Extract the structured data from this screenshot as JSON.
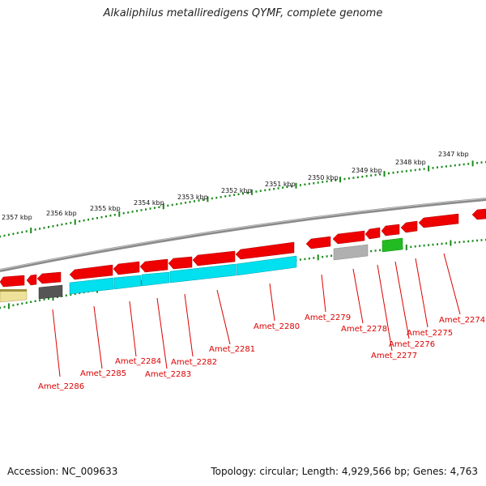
{
  "title": "Alkaliphilus metalliredigens QYMF, complete genome",
  "accession_text": "Accession: NC_009633",
  "topology_text": "Topology: circular; Length: 4,929,566 bp; Genes: 4,763",
  "colors": {
    "backbone": "#8a8a8a",
    "forward_gene": "#ee0000",
    "reverse_cds": "#00e0ee",
    "tick": "#1a8a1a",
    "label": "#dd0000",
    "gray_gene": "#b0b0b0",
    "dark_gene": "#555555",
    "green_gene": "#22bb22",
    "yellow_gene": "#eee29a"
  },
  "kbp_labels": [
    "2357 kbp",
    "2356 kbp",
    "2355 kbp",
    "2354 kbp",
    "2353 kbp",
    "2352 kbp",
    "2351 kbp",
    "2350 kbp",
    "2349 kbp",
    "2348 kbp",
    "2347 kbp"
  ],
  "gene_labels": [
    "Amet_2286",
    "Amet_2285",
    "Amet_2284",
    "Amet_2283",
    "Amet_2282",
    "Amet_2281",
    "Amet_2280",
    "Amet_2279",
    "Amet_2278",
    "Amet_2277",
    "Amet_2276",
    "Amet_2275",
    "Amet_2274"
  ]
}
